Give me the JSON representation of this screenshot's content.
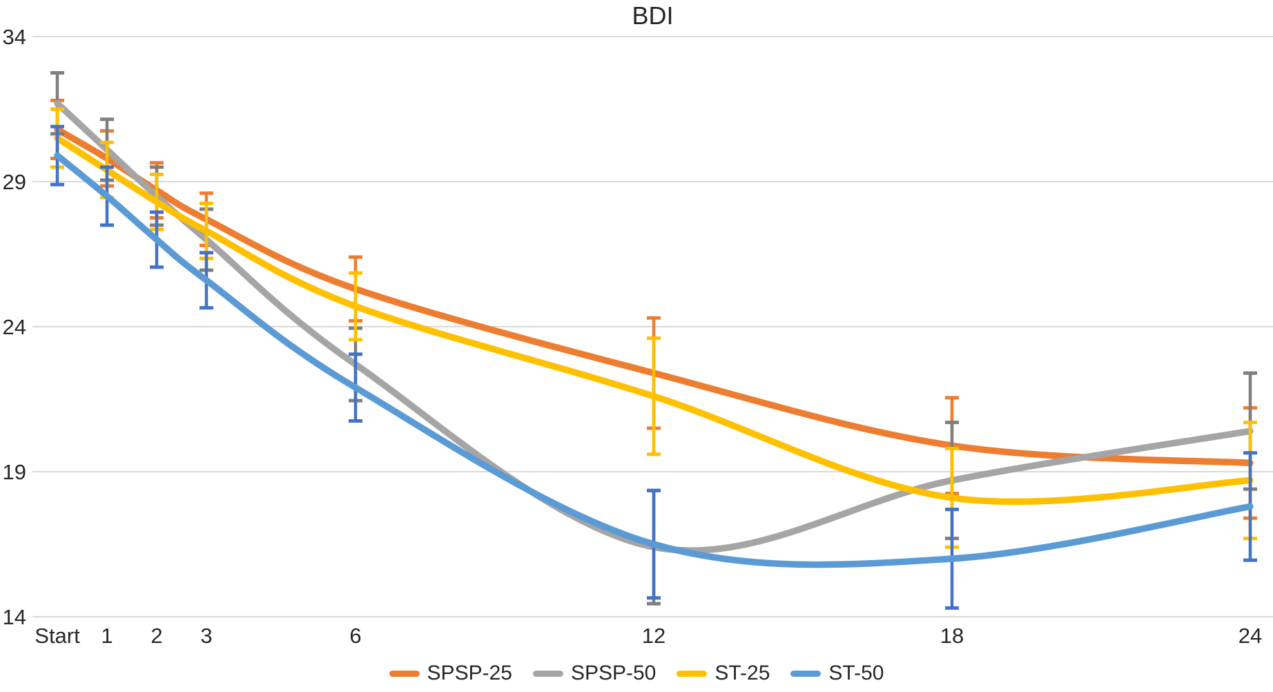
{
  "chart_data": {
    "type": "line",
    "title": "BDI",
    "xlabel": "",
    "ylabel": "",
    "x_categories": [
      "Start",
      "1",
      "2",
      "3",
      "6",
      "12",
      "18",
      "24"
    ],
    "x_values": [
      0,
      1,
      2,
      3,
      6,
      12,
      18,
      24
    ],
    "y_ticks": [
      14,
      19,
      24,
      29,
      34
    ],
    "ylim": [
      14,
      34
    ],
    "grid": true,
    "gridline_color": "#D9D9D9",
    "axis_text_color": "#262626",
    "legend_position": "bottom",
    "error_bars": true,
    "series": [
      {
        "name": "SPSP-25",
        "color": "#ED7D31",
        "error_color": "#ED7D31",
        "values": [
          30.8,
          29.8,
          28.7,
          27.7,
          25.3,
          22.4,
          19.9,
          19.3
        ],
        "errors": [
          1.0,
          0.95,
          0.95,
          0.9,
          1.1,
          1.9,
          1.65,
          1.9
        ]
      },
      {
        "name": "SPSP-50",
        "color": "#A5A5A5",
        "error_color": "#7F7F7F",
        "values": [
          31.7,
          30.1,
          28.5,
          27.0,
          22.7,
          16.4,
          18.7,
          20.4
        ],
        "errors": [
          1.05,
          1.05,
          1.0,
          1.05,
          1.25,
          1.95,
          2.0,
          2.0
        ]
      },
      {
        "name": "ST-25",
        "color": "#FFC000",
        "error_color": "#FFC000",
        "values": [
          30.5,
          29.4,
          28.3,
          27.3,
          24.7,
          21.6,
          18.1,
          18.7
        ],
        "errors": [
          1.0,
          0.95,
          0.95,
          0.95,
          1.15,
          2.0,
          1.7,
          2.0
        ]
      },
      {
        "name": "ST-50",
        "color": "#5B9BD5",
        "error_color": "#4472C4",
        "values": [
          29.9,
          28.5,
          27.0,
          25.6,
          21.9,
          16.5,
          16.0,
          17.8
        ],
        "errors": [
          1.0,
          1.0,
          0.95,
          0.95,
          1.15,
          1.85,
          1.7,
          1.85
        ]
      }
    ]
  }
}
